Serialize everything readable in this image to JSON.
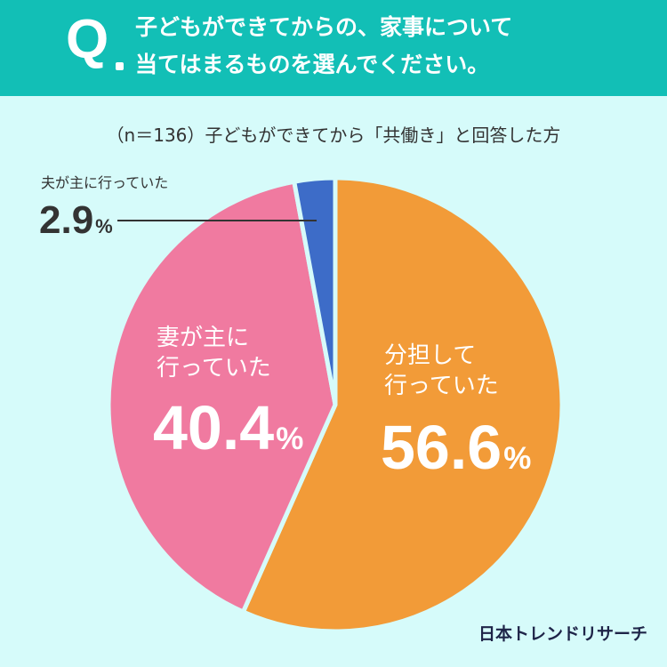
{
  "question": {
    "mark": "Q",
    "line1": "子どもができてからの、家事について",
    "line2": "当てはまるものを選んでください。"
  },
  "subtitle": "（n＝136）子どもができてから「共働き」と回答した方",
  "chart_data": {
    "type": "pie",
    "unit": "%",
    "slices": [
      {
        "label": "分担して行っていた",
        "value": 56.6,
        "color": "#f29b38"
      },
      {
        "label": "妻が主に行っていた",
        "value": 40.4,
        "color": "#f07aa0"
      },
      {
        "label": "夫が主に行っていた",
        "value": 2.9,
        "color": "#3d6cc8"
      }
    ]
  },
  "labels": {
    "share_line1": "分担して",
    "share_line2": "行っていた",
    "share_value": "56.6",
    "wife_line1": "妻が主に",
    "wife_line2": "行っていた",
    "wife_value": "40.4",
    "husband": "夫が主に行っていた",
    "husband_value": "2.9",
    "unit": "%"
  },
  "brand": "日本トレンドリサーチ"
}
